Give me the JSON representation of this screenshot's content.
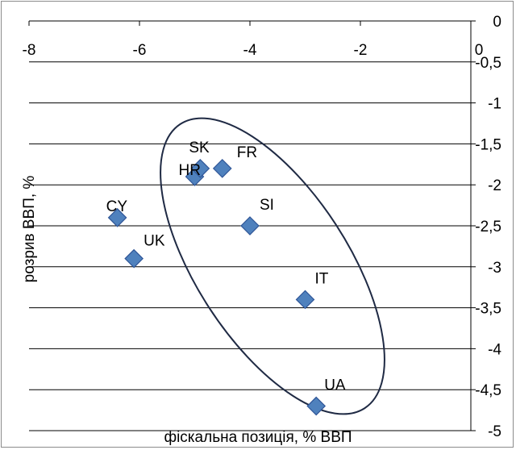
{
  "chart_data": {
    "type": "scatter",
    "xlabel": "фіскальна позиція, % ВВП",
    "ylabel": "розрив ВВП, %",
    "xlim": [
      -8,
      0
    ],
    "ylim": [
      -5,
      0
    ],
    "x_axis_position": "top",
    "y_axis_position": "right",
    "grid": "horizontal",
    "x_ticks": [
      -8,
      -6,
      -4,
      -2,
      0
    ],
    "x_tick_labels": [
      "-8",
      "-6",
      "-4",
      "-2",
      "0"
    ],
    "y_ticks": [
      0,
      -0.5,
      -1,
      -1.5,
      -2,
      -2.5,
      -3,
      -3.5,
      -4,
      -4.5,
      -5
    ],
    "y_tick_labels": [
      "0",
      "-0,5",
      "-1",
      "-1,5",
      "-2",
      "-2,5",
      "-3",
      "-3,5",
      "-4",
      "-4,5",
      "-5"
    ],
    "marker": "diamond",
    "marker_color": "#4f81bd",
    "points": [
      {
        "label": "CY",
        "x": -6.4,
        "y": -2.4
      },
      {
        "label": "UK",
        "x": -6.1,
        "y": -2.9
      },
      {
        "label": "HR",
        "x": -5.0,
        "y": -1.9
      },
      {
        "label": "SK",
        "x": -4.9,
        "y": -1.8
      },
      {
        "label": "FR",
        "x": -4.5,
        "y": -1.8
      },
      {
        "label": "SI",
        "x": -4.0,
        "y": -2.5
      },
      {
        "label": "IT",
        "x": -3.0,
        "y": -3.4
      },
      {
        "label": "UA",
        "x": -2.8,
        "y": -4.7
      }
    ],
    "annotation": {
      "shape": "ellipse",
      "color": "#1f2a44",
      "encloses": [
        "HR",
        "SK",
        "FR",
        "SI",
        "IT",
        "UA"
      ]
    }
  }
}
